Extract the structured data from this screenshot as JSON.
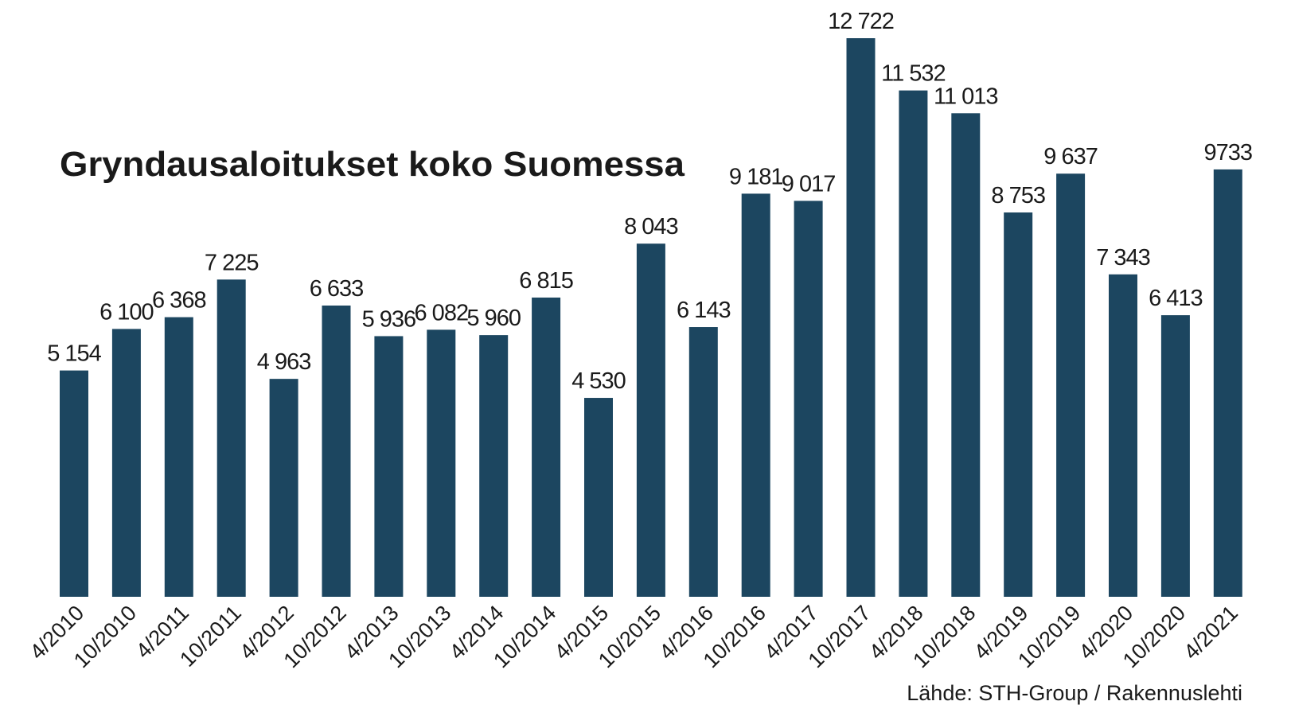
{
  "chart_data": {
    "type": "bar",
    "title": "Gryndausaloitukset koko Suomessa",
    "source": "Lähde: STH-Group / Rakennuslehti",
    "color": "#1c4660",
    "categories": [
      "4/2010",
      "10/2010",
      "4/2011",
      "10/2011",
      "4/2012",
      "10/2012",
      "4/2013",
      "10/2013",
      "4/2014",
      "10/2014",
      "4/2015",
      "10/2015",
      "4/2016",
      "10/2016",
      "4/2017",
      "10/2017",
      "4/2018",
      "10/2018",
      "4/2019",
      "10/2019",
      "4/2020",
      "10/2020",
      "4/2021"
    ],
    "values": [
      5154,
      6100,
      6368,
      7225,
      4963,
      6633,
      5936,
      6082,
      5960,
      6815,
      4530,
      8043,
      6143,
      9181,
      9017,
      12722,
      11532,
      11013,
      8753,
      9637,
      7343,
      6413,
      9733
    ],
    "value_labels": [
      "5 154",
      "6 100",
      "6 368",
      "7 225",
      "4 963",
      "6 633",
      "5 936",
      "6 082",
      "5 960",
      "6 815",
      "4 530",
      "8 043",
      "6 143",
      "9 181",
      "9 017",
      "12 722",
      "11 532",
      "11 013",
      "8 753",
      "9 637",
      "7 343",
      "6 413",
      "9733"
    ]
  }
}
